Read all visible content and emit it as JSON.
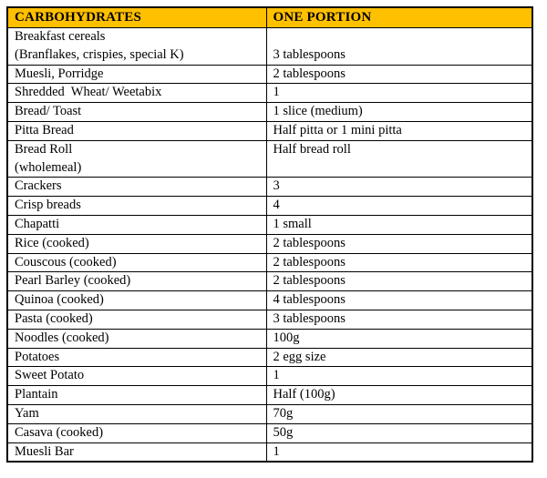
{
  "table": {
    "header_bg": "#FFC000",
    "headers": [
      {
        "label": "CARBOHYDRATES"
      },
      {
        "label": "ONE PORTION"
      }
    ],
    "rows": [
      {
        "food": "Breakfast cereals\n(Branflakes, crispies, special K)",
        "portion": "\n3 tablespoons"
      },
      {
        "food": "Muesli, Porridge",
        "portion": "2 tablespoons"
      },
      {
        "food": "Shredded  Wheat/ Weetabix",
        "portion": "1"
      },
      {
        "food": "Bread/ Toast",
        "portion": "1 slice (medium)"
      },
      {
        "food": "Pitta Bread",
        "portion": "Half pitta or 1 mini pitta"
      },
      {
        "food": "Bread Roll\n(wholemeal)",
        "portion": "Half bread roll"
      },
      {
        "food": "Crackers",
        "portion": "3"
      },
      {
        "food": "Crisp breads",
        "portion": "4"
      },
      {
        "food": "Chapatti",
        "portion": "1 small"
      },
      {
        "food": "Rice (cooked)",
        "portion": "2 tablespoons"
      },
      {
        "food": "Couscous (cooked)",
        "portion": "2 tablespoons"
      },
      {
        "food": "Pearl Barley (cooked)",
        "portion": "2 tablespoons"
      },
      {
        "food": "Quinoa (cooked)",
        "portion": "4 tablespoons"
      },
      {
        "food": "Pasta (cooked)",
        "portion": "3 tablespoons"
      },
      {
        "food": "Noodles (cooked)",
        "portion": "100g"
      },
      {
        "food": "Potatoes",
        "portion": "2 egg size"
      },
      {
        "food": "Sweet Potato",
        "portion": "1"
      },
      {
        "food": "Plantain",
        "portion": "Half (100g)"
      },
      {
        "food": "Yam",
        "portion": "70g"
      },
      {
        "food": "Casava (cooked)",
        "portion": "50g"
      },
      {
        "food": "Muesli Bar",
        "portion": "1"
      }
    ]
  }
}
